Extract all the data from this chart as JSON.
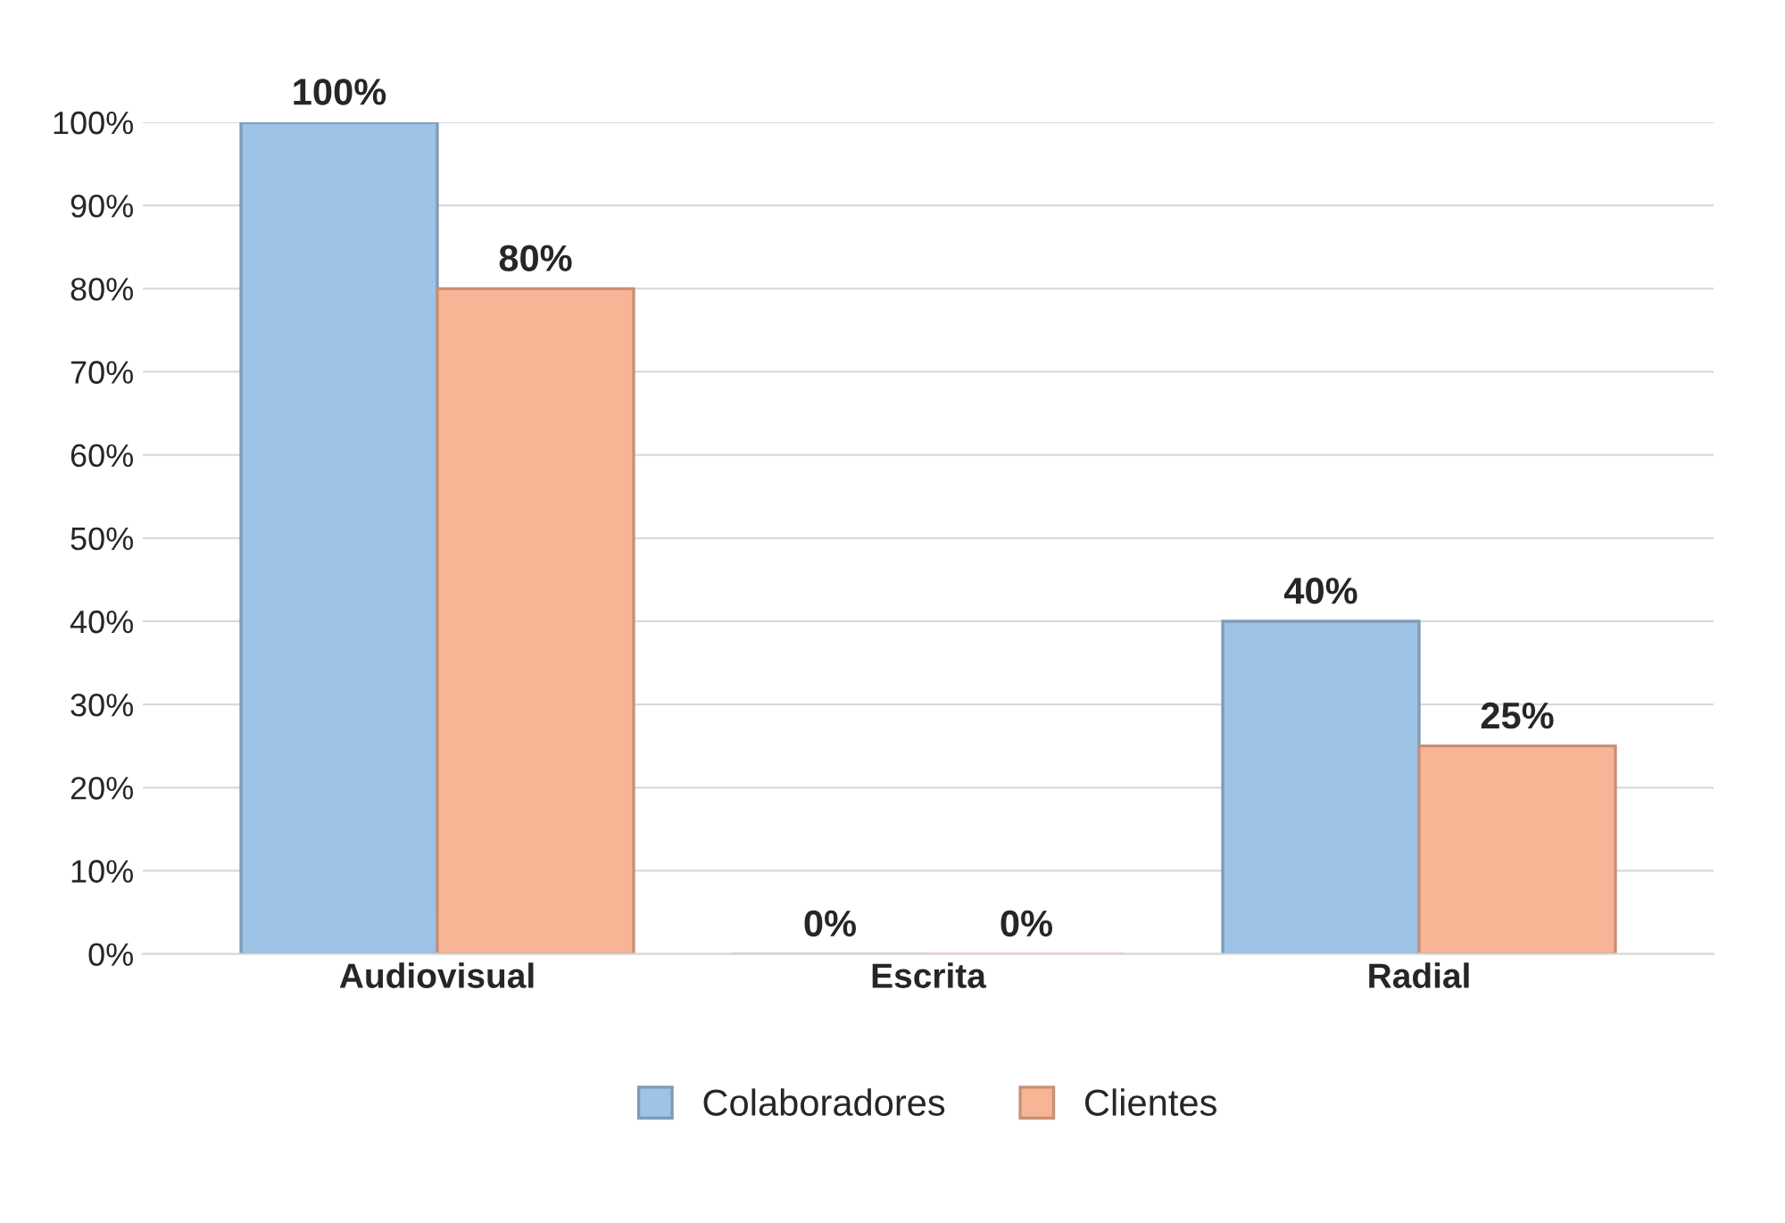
{
  "chart_data": {
    "type": "bar",
    "categories": [
      "Audiovisual",
      "Escrita",
      "Radial"
    ],
    "series": [
      {
        "name": "Colaboradores",
        "color": "#9dc3e6",
        "values": [
          100,
          0,
          40
        ],
        "value_labels": [
          "100%",
          "0%",
          "40%"
        ]
      },
      {
        "name": "Clientes",
        "color": "#f8b595",
        "values": [
          80,
          0,
          25
        ],
        "value_labels": [
          "80%",
          "0%",
          "25%"
        ]
      }
    ],
    "ylim": [
      0,
      100
    ],
    "yticks": [
      {
        "value": 0,
        "label": "0%"
      },
      {
        "value": 10,
        "label": "10%"
      },
      {
        "value": 20,
        "label": "20%"
      },
      {
        "value": 30,
        "label": "30%"
      },
      {
        "value": 40,
        "label": "40%"
      },
      {
        "value": 50,
        "label": "50%"
      },
      {
        "value": 60,
        "label": "60%"
      },
      {
        "value": 70,
        "label": "70%"
      },
      {
        "value": 80,
        "label": "80%"
      },
      {
        "value": 90,
        "label": "90%"
      },
      {
        "value": 100,
        "label": "100%"
      }
    ],
    "grid": "y",
    "legend": "bottom"
  }
}
